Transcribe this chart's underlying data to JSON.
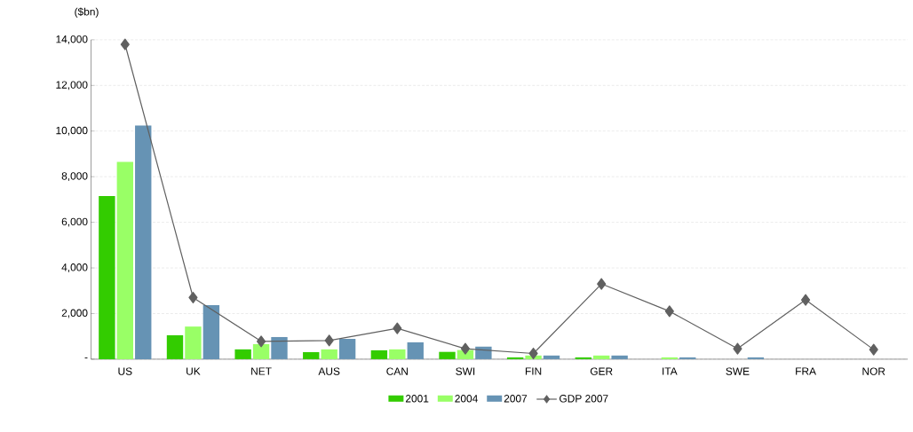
{
  "chart_data": {
    "type": "bar",
    "ylabel": "($bn)",
    "categories": [
      "US",
      "UK",
      "NET",
      "AUS",
      "CAN",
      "SWI",
      "FIN",
      "GER",
      "ITA",
      "SWE",
      "FRA",
      "NOR"
    ],
    "series": [
      {
        "name": "2001",
        "color": "#33cc00",
        "values": [
          7150,
          1050,
          430,
          310,
          390,
          320,
          80,
          80,
          0,
          0,
          null,
          null
        ]
      },
      {
        "name": "2004",
        "color": "#99ff66",
        "values": [
          8650,
          1430,
          660,
          430,
          430,
          400,
          160,
          160,
          80,
          0,
          null,
          null
        ]
      },
      {
        "name": "2007",
        "color": "#6693b4",
        "values": [
          10240,
          2370,
          970,
          890,
          740,
          550,
          160,
          160,
          80,
          80,
          null,
          null
        ]
      },
      {
        "name": "GDP 2007",
        "type": "line",
        "color": "#606060",
        "marker": "diamond",
        "values": [
          13800,
          2700,
          780,
          820,
          1350,
          460,
          250,
          3300,
          2100,
          460,
          2600,
          420
        ]
      }
    ],
    "ylim": [
      0,
      14000
    ],
    "yticks": [
      {
        "value": 0,
        "label": "-"
      },
      {
        "value": 2000,
        "label": "2,000"
      },
      {
        "value": 4000,
        "label": "4,000"
      },
      {
        "value": 6000,
        "label": "6,000"
      },
      {
        "value": 8000,
        "label": "8,000"
      },
      {
        "value": 10000,
        "label": "10,000"
      },
      {
        "value": 12000,
        "label": "12,000"
      },
      {
        "value": 14000,
        "label": "14,000"
      }
    ],
    "grid": "y",
    "legend": "bottom"
  }
}
